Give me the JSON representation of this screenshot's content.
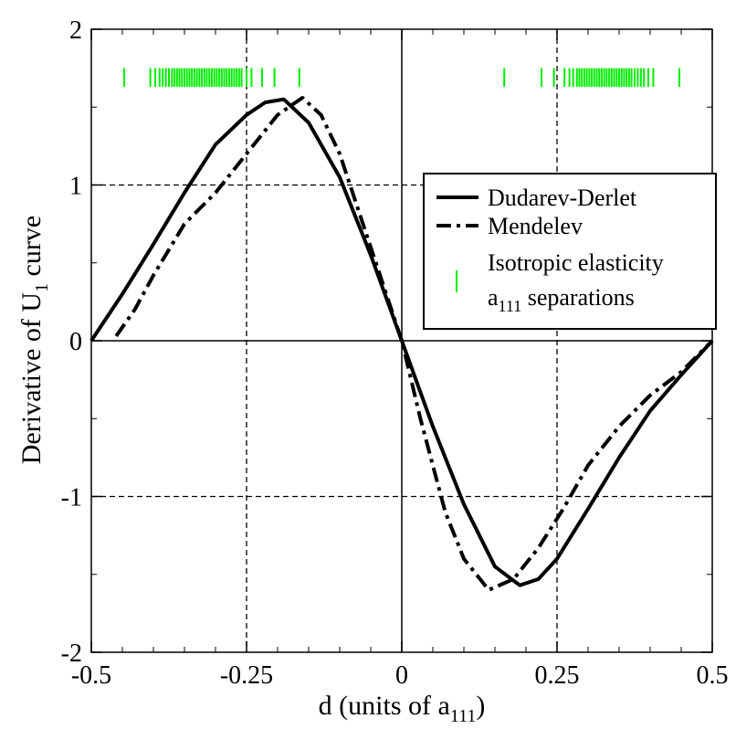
{
  "chart_data": {
    "type": "line",
    "xlabel": {
      "main": "d (units of a",
      "sub": "111",
      "tail": ")"
    },
    "ylabel": {
      "main": "Derivative of U",
      "sub": "1",
      "tail": " curve"
    },
    "xlim": [
      -0.5,
      0.5
    ],
    "ylim": [
      -2,
      2
    ],
    "xticks": [
      -0.5,
      -0.25,
      0,
      0.25,
      0.5
    ],
    "xtick_labels": [
      "-0.5",
      "-0.25",
      "0",
      "0.25",
      "0.5"
    ],
    "yticks": [
      -2,
      -1,
      0,
      1,
      2
    ],
    "ytick_labels": [
      "-2",
      "-1",
      "0",
      "1",
      "2"
    ],
    "grid": "dashed lines at x = ±0.25 and y = ±1",
    "legend_position": "right",
    "colors": {
      "separations": "#00ee00",
      "lines": "#000000"
    },
    "series": [
      {
        "name": "Dudarev-Derlet",
        "style": "solid",
        "points": [
          [
            -0.5,
            0.0
          ],
          [
            -0.45,
            0.3
          ],
          [
            -0.4,
            0.62
          ],
          [
            -0.35,
            0.95
          ],
          [
            -0.3,
            1.26
          ],
          [
            -0.25,
            1.45
          ],
          [
            -0.22,
            1.53
          ],
          [
            -0.19,
            1.55
          ],
          [
            -0.15,
            1.4
          ],
          [
            -0.1,
            1.05
          ],
          [
            -0.05,
            0.55
          ],
          [
            0.0,
            0.0
          ],
          [
            0.05,
            -0.55
          ],
          [
            0.1,
            -1.05
          ],
          [
            0.15,
            -1.45
          ],
          [
            0.19,
            -1.57
          ],
          [
            0.22,
            -1.53
          ],
          [
            0.25,
            -1.4
          ],
          [
            0.3,
            -1.08
          ],
          [
            0.35,
            -0.75
          ],
          [
            0.4,
            -0.45
          ],
          [
            0.45,
            -0.22
          ],
          [
            0.5,
            0.0
          ]
        ]
      },
      {
        "name": "Mendelev",
        "style": "dash-dot",
        "points": [
          [
            -0.46,
            0.03
          ],
          [
            -0.43,
            0.2
          ],
          [
            -0.4,
            0.42
          ],
          [
            -0.35,
            0.75
          ],
          [
            -0.3,
            0.95
          ],
          [
            -0.25,
            1.2
          ],
          [
            -0.2,
            1.45
          ],
          [
            -0.16,
            1.56
          ],
          [
            -0.13,
            1.45
          ],
          [
            -0.1,
            1.2
          ],
          [
            -0.05,
            0.6
          ],
          [
            0.0,
            0.0
          ],
          [
            0.03,
            -0.5
          ],
          [
            0.07,
            -1.1
          ],
          [
            0.1,
            -1.4
          ],
          [
            0.14,
            -1.6
          ],
          [
            0.18,
            -1.53
          ],
          [
            0.22,
            -1.33
          ],
          [
            0.26,
            -1.08
          ],
          [
            0.3,
            -0.8
          ],
          [
            0.35,
            -0.55
          ],
          [
            0.4,
            -0.35
          ],
          [
            0.45,
            -0.2
          ],
          [
            0.5,
            0.0
          ]
        ]
      }
    ],
    "separations": {
      "name_lines": [
        "Isotropic elasticity"
      ],
      "name_sub_prefix": "a",
      "name_sub": "111",
      "name_sub_tail": " separations",
      "y_range": [
        1.63,
        1.75
      ],
      "x": [
        -0.447,
        -0.405,
        -0.397,
        -0.39,
        -0.385,
        -0.38,
        -0.375,
        -0.37,
        -0.366,
        -0.362,
        -0.358,
        -0.354,
        -0.35,
        -0.346,
        -0.342,
        -0.338,
        -0.334,
        -0.33,
        -0.326,
        -0.322,
        -0.318,
        -0.314,
        -0.31,
        -0.306,
        -0.302,
        -0.298,
        -0.294,
        -0.29,
        -0.286,
        -0.282,
        -0.278,
        -0.274,
        -0.27,
        -0.266,
        -0.262,
        -0.258,
        -0.25,
        -0.242,
        -0.225,
        -0.205,
        -0.165,
        0.165,
        0.225,
        0.245,
        0.262,
        0.27,
        0.276,
        0.282,
        0.286,
        0.29,
        0.294,
        0.298,
        0.302,
        0.306,
        0.31,
        0.314,
        0.318,
        0.322,
        0.326,
        0.33,
        0.334,
        0.338,
        0.342,
        0.346,
        0.35,
        0.354,
        0.358,
        0.362,
        0.366,
        0.37,
        0.375,
        0.38,
        0.385,
        0.39,
        0.397,
        0.405,
        0.447
      ]
    }
  }
}
